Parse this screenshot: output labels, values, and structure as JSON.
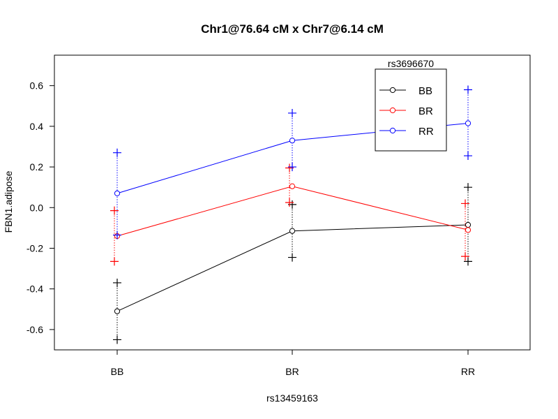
{
  "chart_data": {
    "type": "line",
    "title": "Chr1@76.64 cM x Chr7@6.14 cM",
    "xlabel": "rs13459163",
    "ylabel": "FBN1.adipose",
    "categories": [
      "BB",
      "BR",
      "RR"
    ],
    "ylim": [
      -0.7,
      0.75
    ],
    "yticks": [
      "-0.6",
      "-0.4",
      "-0.2",
      "0.0",
      "0.2",
      "0.4",
      "0.6"
    ],
    "ytick_values": [
      -0.6,
      -0.4,
      -0.2,
      0.0,
      0.2,
      0.4,
      0.6
    ],
    "legend": {
      "title": "rs3696670",
      "placement": "top-right"
    },
    "series": [
      {
        "name": "BB",
        "color": "#000000",
        "values": [
          -0.51,
          -0.115,
          -0.085
        ],
        "upper": [
          -0.37,
          0.015,
          0.1
        ],
        "lower": [
          -0.65,
          -0.245,
          -0.265
        ]
      },
      {
        "name": "BR",
        "color": "#ff0000",
        "values": [
          -0.14,
          0.105,
          -0.11
        ],
        "upper": [
          -0.015,
          0.195,
          0.02
        ],
        "lower": [
          -0.265,
          0.025,
          -0.24
        ]
      },
      {
        "name": "RR",
        "color": "#0000ff",
        "values": [
          0.07,
          0.33,
          0.415
        ],
        "upper": [
          0.27,
          0.465,
          0.58
        ],
        "lower": [
          -0.135,
          0.2,
          0.255
        ]
      }
    ]
  }
}
